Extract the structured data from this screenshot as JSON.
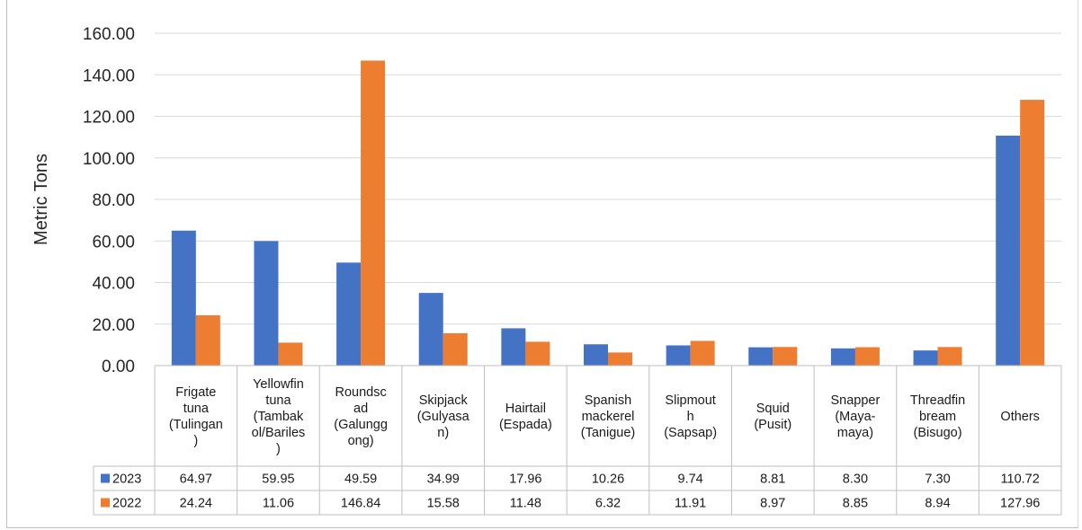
{
  "chart_data": {
    "type": "bar",
    "ylabel": "Metric Tons",
    "ylim": [
      0,
      160
    ],
    "yticks": [
      "0.00",
      "20.00",
      "40.00",
      "60.00",
      "80.00",
      "100.00",
      "120.00",
      "140.00",
      "160.00"
    ],
    "grid": true,
    "legend": "data-table-left",
    "categories": [
      [
        "Frigate",
        "tuna",
        "(Tulingan",
        ")"
      ],
      [
        "Yellowfin",
        "tuna",
        "(Tambak",
        "ol/Bariles",
        ")"
      ],
      [
        "Roundsc",
        "ad",
        "(Galungg",
        "ong)"
      ],
      [
        "Skipjack",
        "(Gulyasa",
        "n)"
      ],
      [
        "Hairtail",
        "(Espada)"
      ],
      [
        "Spanish",
        "mackerel",
        "(Tanigue)"
      ],
      [
        "Slipmout",
        "h",
        "(Sapsap)"
      ],
      [
        "Squid",
        "(Pusit)"
      ],
      [
        "Snapper",
        "(Maya-",
        "maya)"
      ],
      [
        "Threadfin",
        "bream",
        "(Bisugo)"
      ],
      [
        "Others"
      ]
    ],
    "series": [
      {
        "name": "2023",
        "color": "#4472c4",
        "values": [
          64.97,
          59.95,
          49.59,
          34.99,
          17.96,
          10.26,
          9.74,
          8.81,
          8.3,
          7.3,
          110.72
        ],
        "labels": [
          "64.97",
          "59.95",
          "49.59",
          "34.99",
          "17.96",
          "10.26",
          "9.74",
          "8.81",
          "8.30",
          "7.30",
          "110.72"
        ]
      },
      {
        "name": "2022",
        "color": "#ed7d31",
        "values": [
          24.24,
          11.06,
          146.84,
          15.58,
          11.48,
          6.32,
          11.91,
          8.97,
          8.85,
          8.94,
          127.96
        ],
        "labels": [
          "24.24",
          "11.06",
          "146.84",
          "15.58",
          "11.48",
          "6.32",
          "11.91",
          "8.97",
          "8.85",
          "8.94",
          "127.96"
        ]
      }
    ]
  }
}
